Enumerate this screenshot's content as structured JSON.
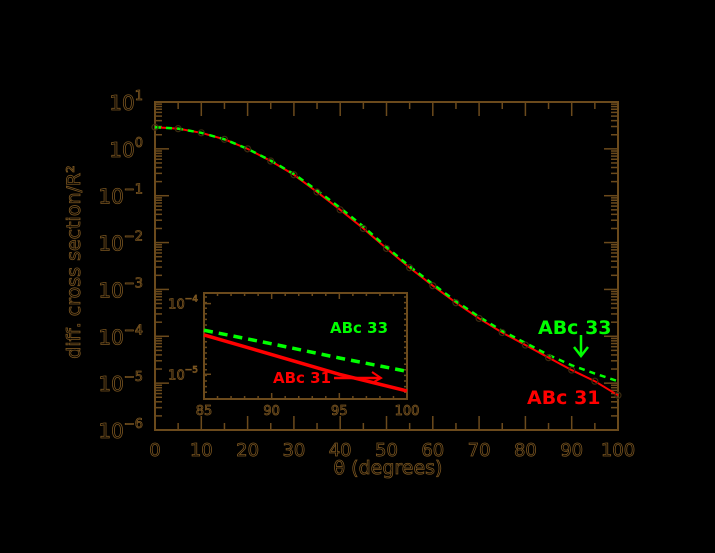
{
  "chart_data": [
    {
      "type": "line",
      "title": "",
      "xlabel": "θ (degrees)",
      "ylabel": "diff. cross section/R²",
      "xlim": [
        0,
        100
      ],
      "ylim": [
        1e-06,
        10
      ],
      "yscale": "log",
      "x_ticks": [
        0,
        10,
        20,
        30,
        40,
        50,
        60,
        70,
        80,
        90,
        100
      ],
      "y_ticks": [
        "10^1",
        "10^0",
        "10^-1",
        "10^-2",
        "10^-3",
        "10^-4",
        "10^-5",
        "10^-6"
      ],
      "x": [
        0,
        5,
        10,
        15,
        20,
        25,
        30,
        35,
        40,
        45,
        50,
        55,
        60,
        65,
        70,
        75,
        80,
        85,
        90,
        95,
        100
      ],
      "series": [
        {
          "name": "ABc 31",
          "color": "#ff0000",
          "style": "solid",
          "values": [
            2.9,
            2.7,
            2.2,
            1.6,
            1.0,
            0.55,
            0.28,
            0.12,
            0.05,
            0.02,
            0.0075,
            0.0029,
            0.0012,
            0.00052,
            0.00024,
            0.00012,
            6.5e-05,
            3.5e-05,
            1.9e-05,
            1.1e-05,
            5.5e-06
          ]
        },
        {
          "name": "ABc 33",
          "color": "#00ff00",
          "style": "dashed",
          "values": [
            2.9,
            2.7,
            2.2,
            1.6,
            1.0,
            0.56,
            0.29,
            0.13,
            0.055,
            0.022,
            0.008,
            0.0031,
            0.0013,
            0.00056,
            0.00026,
            0.00013,
            7.2e-05,
            4e-05,
            2.4e-05,
            1.6e-05,
            1.1e-05
          ]
        }
      ],
      "annotations": [
        {
          "text": "ABc 33",
          "color": "#00ff00",
          "arrow": "down"
        },
        {
          "text": "ABc 31",
          "color": "#ff0000"
        }
      ]
    },
    {
      "type": "line",
      "title": "inset",
      "xlim": [
        85,
        100
      ],
      "yscale": "log",
      "x_ticks": [
        85,
        90,
        95,
        100
      ],
      "y_ticks": [
        "10^-4",
        "10^-5"
      ],
      "x": [
        85,
        90,
        95,
        100
      ],
      "series": [
        {
          "name": "ABc 33",
          "color": "#00ff00",
          "style": "dashed",
          "values": [
            4.2e-05,
            2.7e-05,
            1.7e-05,
            1.1e-05
          ]
        },
        {
          "name": "ABc 31",
          "color": "#ff0000",
          "style": "solid",
          "values": [
            3.6e-05,
            1.9e-05,
            1e-05,
            5.8e-06
          ]
        }
      ],
      "annotations": [
        {
          "text": "ABc 33",
          "color": "#00ff00"
        },
        {
          "text": "ABc 31",
          "color": "#ff0000",
          "arrow": "right"
        }
      ]
    }
  ],
  "labels": {
    "xlabel": "θ (degrees)",
    "ylabel": "diff. cross section/R²",
    "abc33": "ABc 33",
    "abc31": "ABc 31"
  }
}
